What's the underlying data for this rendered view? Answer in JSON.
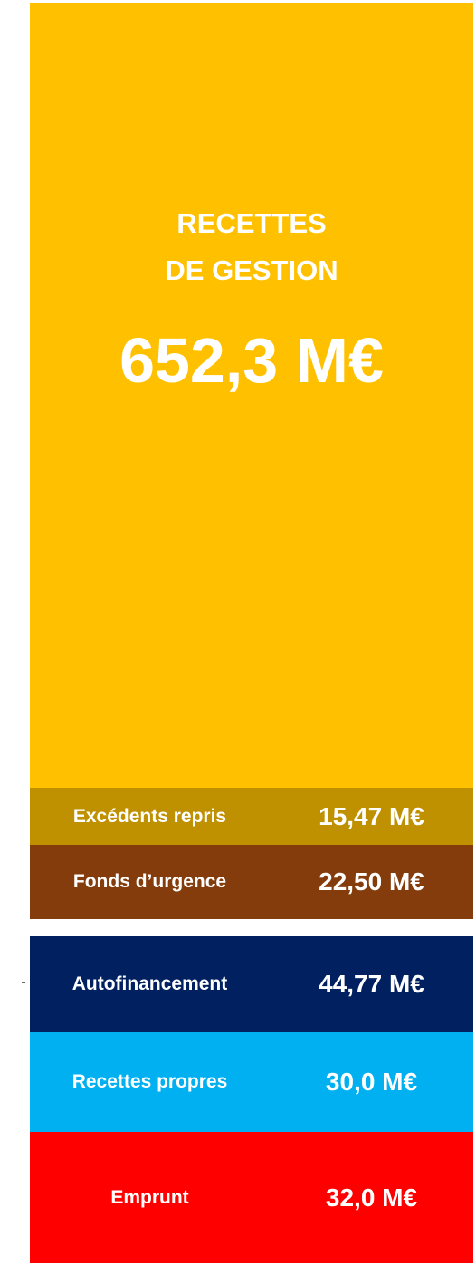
{
  "main": {
    "title_line1": "RECETTES",
    "title_line2": "DE GESTION",
    "amount": "652,3 M€"
  },
  "blocks": [
    {
      "label": "Excédents repris",
      "amount": "15,47 M€"
    },
    {
      "label": "Fonds d’urgence",
      "amount": "22,50 M€"
    },
    {
      "label": "Autofinancement",
      "amount": "44,77 M€"
    },
    {
      "label": "Recettes propres",
      "amount": "30,0 M€"
    },
    {
      "label": "Emprunt",
      "amount": "32,0 M€"
    }
  ]
}
